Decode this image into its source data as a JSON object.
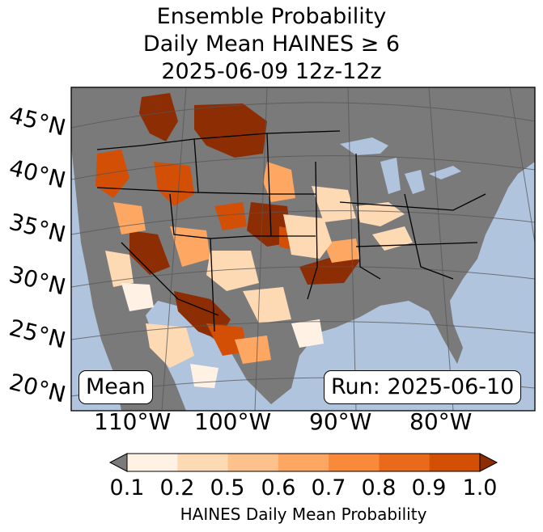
{
  "title": {
    "line1": "Ensemble Probability",
    "line2": "Daily Mean HAINES ≥ 6",
    "line3": "2025-06-09 12z-12z"
  },
  "map": {
    "lat_labels": [
      "45°N",
      "40°N",
      "35°N",
      "30°N",
      "25°N",
      "20°N"
    ],
    "lon_labels": [
      "110°W",
      "100°W",
      "90°W",
      "80°W"
    ],
    "mean_label": "Mean",
    "run_label": "Run: 2025-06-10",
    "ocean_color": "#b0c4de",
    "land_color": "#7a7a7a",
    "probability_regions": [
      {
        "region": "northern rockies",
        "level": 1.0
      },
      {
        "region": "pacific northwest",
        "level": 0.9
      },
      {
        "region": "great basin",
        "level": 0.7
      },
      {
        "region": "southwest",
        "level": 1.0
      },
      {
        "region": "central plains",
        "level": 0.9
      },
      {
        "region": "mid-south",
        "level": 1.0
      },
      {
        "region": "southern plains",
        "level": 0.5
      },
      {
        "region": "ohio valley",
        "level": 0.2
      }
    ]
  },
  "colorbar": {
    "ticks": [
      "0.1",
      "0.2",
      "0.5",
      "0.6",
      "0.7",
      "0.8",
      "0.9",
      "1.0"
    ],
    "colors": [
      "#fff2e5",
      "#fdd9b4",
      "#fdc28c",
      "#fda762",
      "#f98a3b",
      "#ea6a1b",
      "#d24f05"
    ],
    "under_color": "#7a7a7a",
    "over_color": "#8c2d04",
    "label": "HAINES Daily Mean Probability"
  }
}
